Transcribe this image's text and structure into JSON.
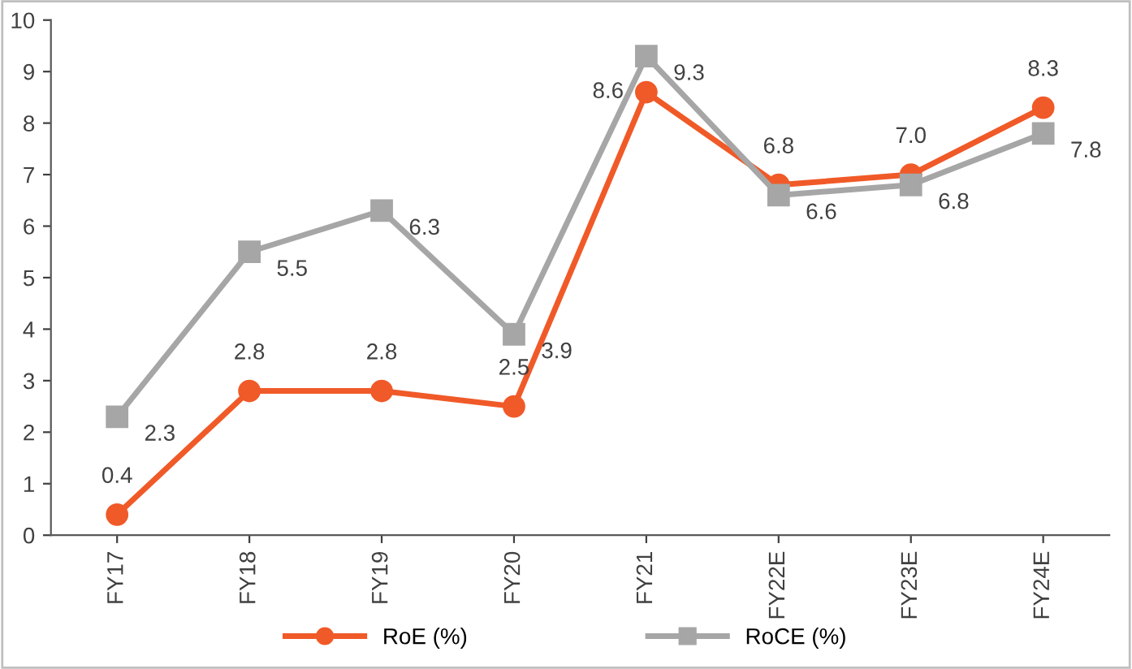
{
  "chart_data": {
    "type": "line",
    "categories": [
      "FY17",
      "FY18",
      "FY19",
      "FY20",
      "FY21",
      "FY22E",
      "FY23E",
      "FY24E"
    ],
    "series": [
      {
        "name": "RoE (%)",
        "color": "#f05a28",
        "marker": "circle",
        "values": [
          0.4,
          2.8,
          2.8,
          2.5,
          8.6,
          6.8,
          7.0,
          8.3
        ],
        "value_labels": [
          "0.4",
          "2.8",
          "2.8",
          "2.5",
          "8.6",
          "6.8",
          "7.0",
          "8.3"
        ]
      },
      {
        "name": "RoCE (%)",
        "color": "#a6a6a6",
        "marker": "square",
        "values": [
          2.3,
          5.5,
          6.3,
          3.9,
          9.3,
          6.6,
          6.8,
          7.8
        ],
        "value_labels": [
          "2.3",
          "5.5",
          "6.3",
          "3.9",
          "9.3",
          "6.6",
          "6.8",
          "7.8"
        ]
      }
    ],
    "ylim": [
      0,
      10
    ],
    "yticks": [
      0,
      1,
      2,
      3,
      4,
      5,
      6,
      7,
      8,
      9,
      10
    ],
    "grid": false,
    "legend": "bottom",
    "line_style": "solid"
  }
}
